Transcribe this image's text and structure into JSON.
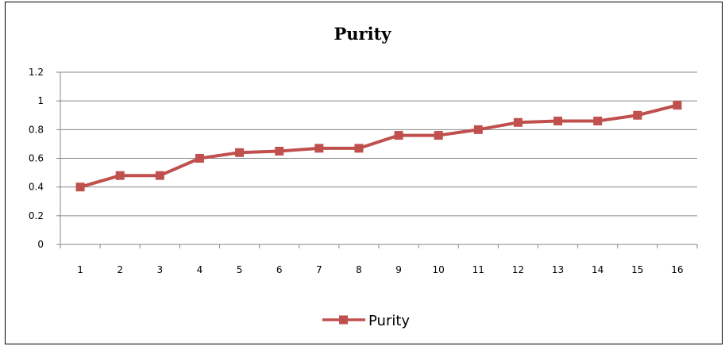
{
  "chart_data": {
    "type": "line",
    "title": "Purity",
    "xlabel": "",
    "ylabel": "",
    "categories": [
      "1",
      "2",
      "3",
      "4",
      "5",
      "6",
      "7",
      "8",
      "9",
      "10",
      "11",
      "12",
      "13",
      "14",
      "15",
      "16"
    ],
    "series": [
      {
        "name": "Purity",
        "color": "#c0504d",
        "values": [
          0.4,
          0.48,
          0.48,
          0.6,
          0.64,
          0.65,
          0.67,
          0.67,
          0.76,
          0.76,
          0.8,
          0.85,
          0.86,
          0.86,
          0.9,
          0.97
        ]
      }
    ],
    "ylim": [
      0,
      1.2
    ],
    "yticks": [
      "0",
      "0.2",
      "0.4",
      "0.6",
      "0.8",
      "1",
      "1.2"
    ],
    "grid": true,
    "legend_position": "bottom",
    "marker": "square"
  }
}
